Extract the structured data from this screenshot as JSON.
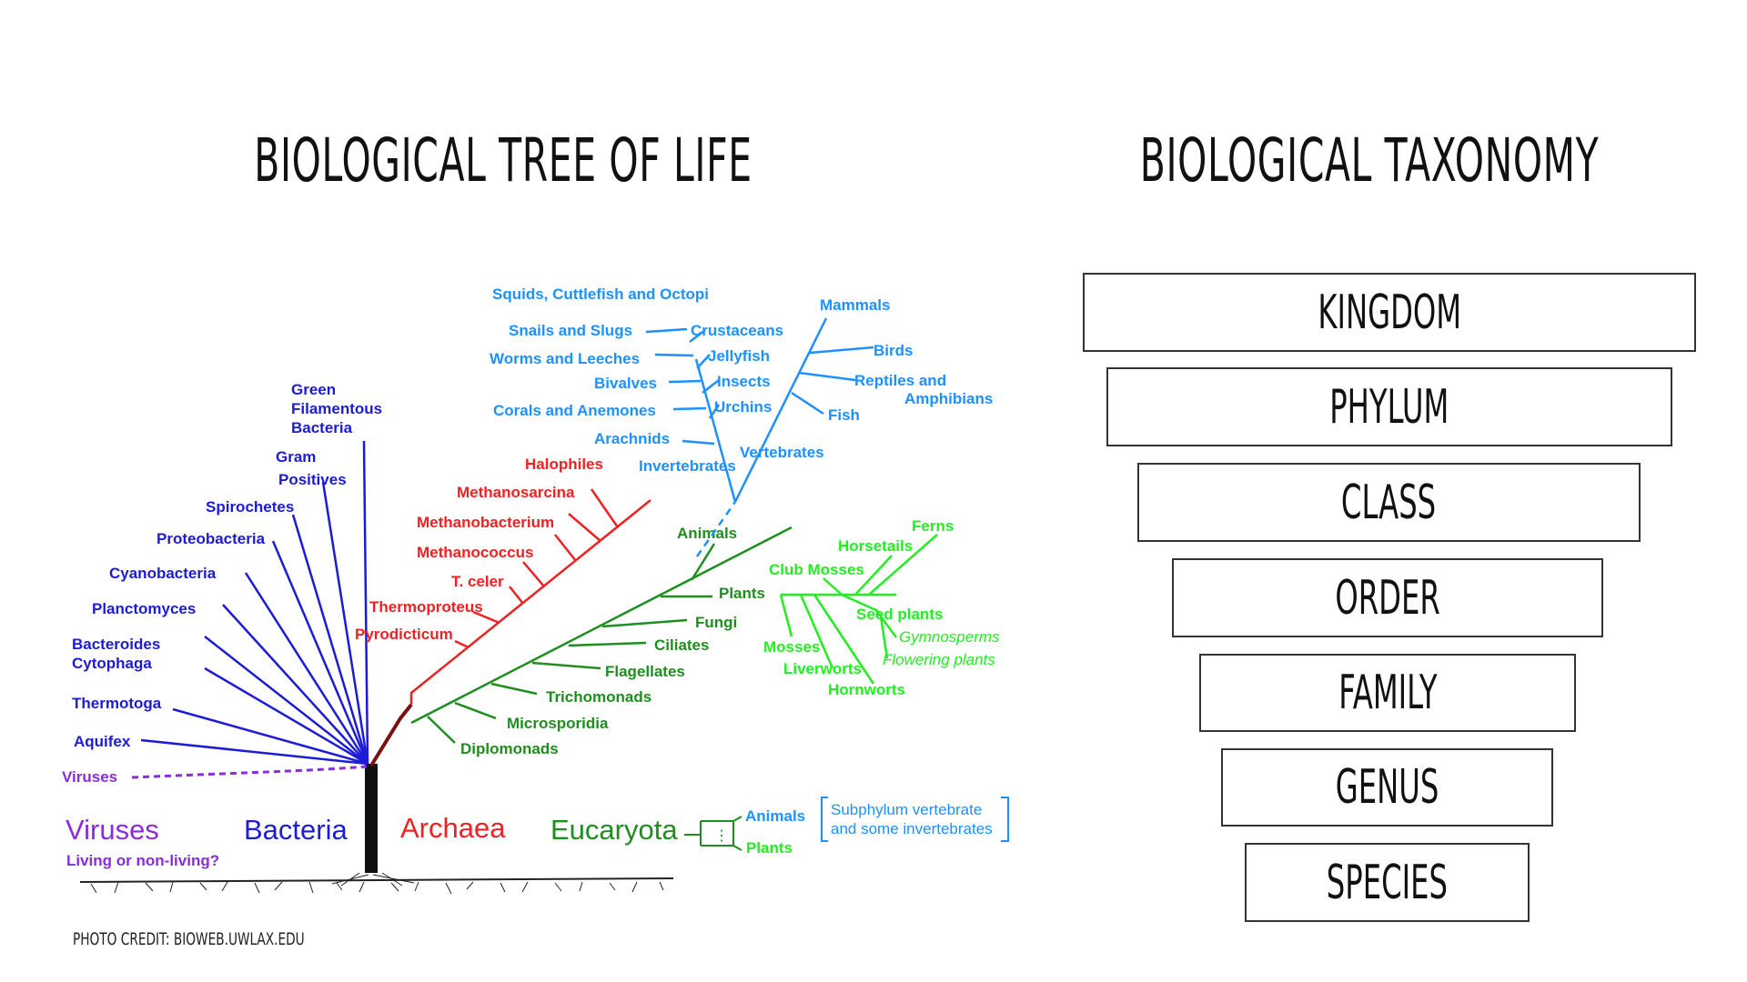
{
  "titles": {
    "left": "BIOLOGICAL TREE OF LIFE",
    "right": "BIOLOGICAL TAXONOMY"
  },
  "colors": {
    "bacteria": "#1c1cd6",
    "archaea": "#ee2222",
    "eucarya": "#1e8f1e",
    "plants": "#22ee22",
    "animals": "#1e90ff",
    "viruses": "#8a2be2",
    "root": "#111111"
  },
  "tree": {
    "domains": {
      "viruses": "Viruses",
      "viruses_note": "Living or non-living?",
      "bacteria": "Bacteria",
      "archaea": "Archaea",
      "eucaryota": "Eucaryota"
    },
    "viruses_branch": "Viruses",
    "bacteria": [
      "Green",
      "Filamentous",
      "Bacteria",
      "Gram",
      "Positives",
      "Spirochetes",
      "Proteobacteria",
      "Cyanobacteria",
      "Planctomyces",
      "Bacteroides",
      "Cytophaga",
      "Thermotoga",
      "Aquifex"
    ],
    "archaea": [
      "Halophiles",
      "Methanosarcina",
      "Methanobacterium",
      "Methanococcus",
      "T. celer",
      "Thermoproteus",
      "Pyrodicticum"
    ],
    "eucarya": [
      "Animals",
      "Plants",
      "Fungi",
      "Ciliates",
      "Flagellates",
      "Trichomonads",
      "Microsporidia",
      "Diplomonads"
    ],
    "plants": [
      "Ferns",
      "Horsetails",
      "Club Mosses",
      "Seed plants",
      "Gymnosperms",
      "Flowering plants",
      "Mosses",
      "Liverworts",
      "Hornworts"
    ],
    "animals": [
      "Squids, Cuttlefish and Octopi",
      "Snails and Slugs",
      "Crustaceans",
      "Worms and Leeches",
      "Jellyfish",
      "Bivalves",
      "Insects",
      "Corals and Anemones",
      "Urchins",
      "Arachnids",
      "Invertebrates",
      "Vertebrates",
      "Mammals",
      "Birds",
      "Reptiles and",
      "Amphibians",
      "Fish"
    ],
    "legend": {
      "animals": "Animals",
      "plants": "Plants",
      "ellipsis": "⋮",
      "note_line1": "Subphylum vertebrate",
      "note_line2": "and some invertebrates"
    }
  },
  "taxonomy": [
    "KINGDOM",
    "PHYLUM",
    "CLASS",
    "ORDER",
    "FAMILY",
    "GENUS",
    "SPECIES"
  ],
  "credit": "PHOTO CREDIT: BIOWEB.UWLAX.EDU"
}
